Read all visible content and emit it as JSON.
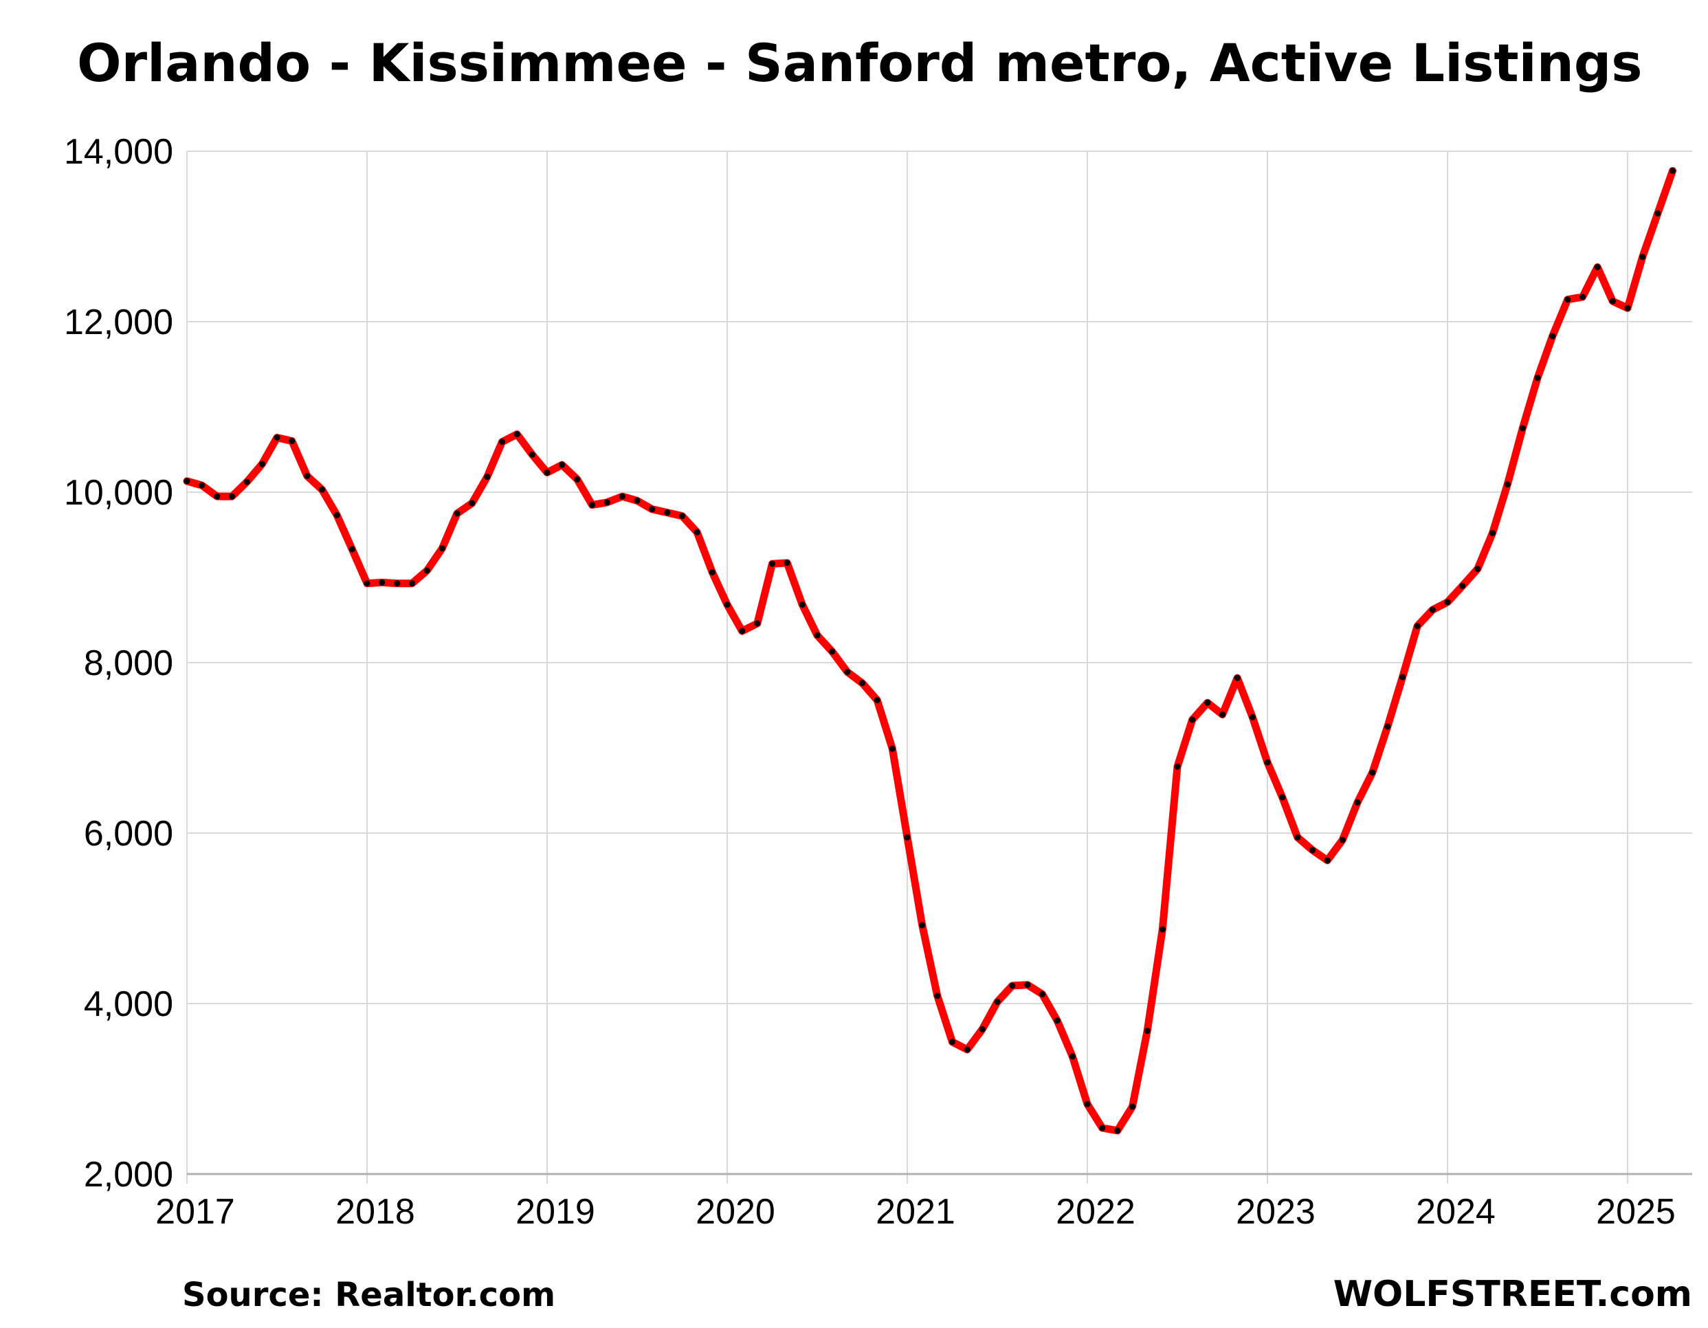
{
  "chart_data": {
    "type": "line",
    "title": "Orlando - Kissimmee - Sanford metro, Active Listings",
    "xlabel": "",
    "ylabel": "",
    "xlim": [
      2017,
      2025.33
    ],
    "ylim": [
      2000,
      14000
    ],
    "x_ticks": [
      "2017",
      "2018",
      "2019",
      "2020",
      "2021",
      "2022",
      "2023",
      "2024",
      "2025"
    ],
    "y_ticks": [
      "2,000",
      "4,000",
      "6,000",
      "8,000",
      "10,000",
      "12,000",
      "14,000"
    ],
    "y_tick_values": [
      2000,
      4000,
      6000,
      8000,
      10000,
      12000,
      14000
    ],
    "grid": true,
    "legend": "none",
    "series": [
      {
        "color": "#ff0000",
        "marker_color": "#000000",
        "x": [
          2017.0,
          2017.083,
          2017.167,
          2017.25,
          2017.333,
          2017.417,
          2017.5,
          2017.583,
          2017.667,
          2017.75,
          2017.833,
          2017.917,
          2018.0,
          2018.083,
          2018.167,
          2018.25,
          2018.333,
          2018.417,
          2018.5,
          2018.583,
          2018.667,
          2018.75,
          2018.833,
          2018.917,
          2019.0,
          2019.083,
          2019.167,
          2019.25,
          2019.333,
          2019.417,
          2019.5,
          2019.583,
          2019.667,
          2019.75,
          2019.833,
          2019.917,
          2020.0,
          2020.083,
          2020.167,
          2020.25,
          2020.333,
          2020.417,
          2020.5,
          2020.583,
          2020.667,
          2020.75,
          2020.833,
          2020.917,
          2021.0,
          2021.083,
          2021.167,
          2021.25,
          2021.333,
          2021.417,
          2021.5,
          2021.583,
          2021.667,
          2021.75,
          2021.833,
          2021.917,
          2022.0,
          2022.083,
          2022.167,
          2022.25,
          2022.333,
          2022.417,
          2022.5,
          2022.583,
          2022.667,
          2022.75,
          2022.833,
          2022.917,
          2023.0,
          2023.083,
          2023.167,
          2023.25,
          2023.333,
          2023.417,
          2023.5,
          2023.583,
          2023.667,
          2023.75,
          2023.833,
          2023.917,
          2024.0,
          2024.083,
          2024.167,
          2024.25,
          2024.333,
          2024.417,
          2024.5,
          2024.583,
          2024.667,
          2024.75,
          2024.833,
          2024.917,
          2025.0,
          2025.083,
          2025.167,
          2025.25
        ],
        "y": [
          10130,
          10080,
          9950,
          9950,
          10120,
          10330,
          10640,
          10600,
          10190,
          10030,
          9730,
          9330,
          8930,
          8940,
          8930,
          8930,
          9080,
          9340,
          9750,
          9870,
          10180,
          10590,
          10680,
          10440,
          10230,
          10320,
          10150,
          9850,
          9880,
          9950,
          9900,
          9800,
          9760,
          9720,
          9530,
          9060,
          8680,
          8370,
          8460,
          9160,
          9170,
          8680,
          8320,
          8130,
          7890,
          7760,
          7560,
          6990,
          5950,
          4920,
          4090,
          3550,
          3460,
          3700,
          4020,
          4210,
          4220,
          4110,
          3800,
          3380,
          2820,
          2540,
          2510,
          2790,
          3680,
          4870,
          6780,
          7330,
          7530,
          7390,
          7820,
          7360,
          6830,
          6420,
          5950,
          5800,
          5680,
          5920,
          6360,
          6710,
          7250,
          7830,
          8430,
          8620,
          8710,
          8900,
          9100,
          9520,
          10090,
          10750,
          11340,
          11830,
          12260,
          12290,
          12640,
          12240,
          12160,
          12760,
          13270,
          13770
        ]
      }
    ],
    "source_label": "Source: Realtor.com",
    "watermark": "WOLFSTREET.com"
  }
}
